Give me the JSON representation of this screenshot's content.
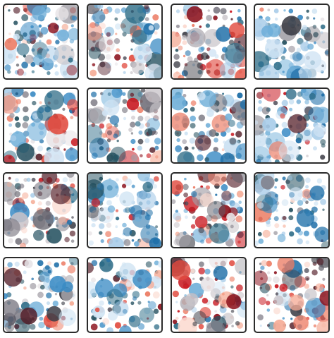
{
  "palettes": {
    "blue": [
      "#cfe3f3",
      "#a6cbe8",
      "#6eaed8",
      "#3a8bc4",
      "#1f6fa8",
      "#2c6b86",
      "#24505f"
    ],
    "red": [
      "#fbd9cf",
      "#f5ab95",
      "#ec7c64",
      "#e14b3f",
      "#c8151d",
      "#8a0f1a",
      "#55202a"
    ],
    "grey": [
      "#e7e3e6",
      "#c8c3c8",
      "#a4a0a8",
      "#7f7c86",
      "#5d5b66",
      "#3c3d46"
    ]
  },
  "tiles": [
    {
      "id": "tile-1",
      "mix": {
        "blue": 0.7,
        "red": 0.15,
        "grey": 0.15
      }
    },
    {
      "id": "tile-2",
      "mix": {
        "blue": 0.45,
        "red": 0.35,
        "grey": 0.2
      }
    },
    {
      "id": "tile-3",
      "mix": {
        "blue": 0.3,
        "red": 0.35,
        "grey": 0.35
      }
    },
    {
      "id": "tile-4",
      "mix": {
        "blue": 0.85,
        "red": 0.05,
        "grey": 0.1
      }
    },
    {
      "id": "tile-5",
      "mix": {
        "blue": 0.55,
        "red": 0.25,
        "grey": 0.2
      }
    },
    {
      "id": "tile-6",
      "mix": {
        "blue": 0.4,
        "red": 0.35,
        "grey": 0.25
      }
    },
    {
      "id": "tile-7",
      "mix": {
        "blue": 0.75,
        "red": 0.1,
        "grey": 0.15
      }
    },
    {
      "id": "tile-8",
      "mix": {
        "blue": 0.8,
        "red": 0.1,
        "grey": 0.1
      }
    },
    {
      "id": "tile-9",
      "mix": {
        "blue": 0.25,
        "red": 0.45,
        "grey": 0.3
      }
    },
    {
      "id": "tile-10",
      "mix": {
        "blue": 0.8,
        "red": 0.1,
        "grey": 0.1
      }
    },
    {
      "id": "tile-11",
      "mix": {
        "blue": 0.3,
        "red": 0.4,
        "grey": 0.3
      }
    },
    {
      "id": "tile-12",
      "mix": {
        "blue": 0.75,
        "red": 0.15,
        "grey": 0.1
      }
    },
    {
      "id": "tile-13",
      "mix": {
        "blue": 0.6,
        "red": 0.2,
        "grey": 0.2
      }
    },
    {
      "id": "tile-14",
      "mix": {
        "blue": 0.75,
        "red": 0.15,
        "grey": 0.1
      }
    },
    {
      "id": "tile-15",
      "mix": {
        "blue": 0.35,
        "red": 0.35,
        "grey": 0.3
      }
    },
    {
      "id": "tile-16",
      "mix": {
        "blue": 0.2,
        "red": 0.45,
        "grey": 0.35
      }
    }
  ]
}
